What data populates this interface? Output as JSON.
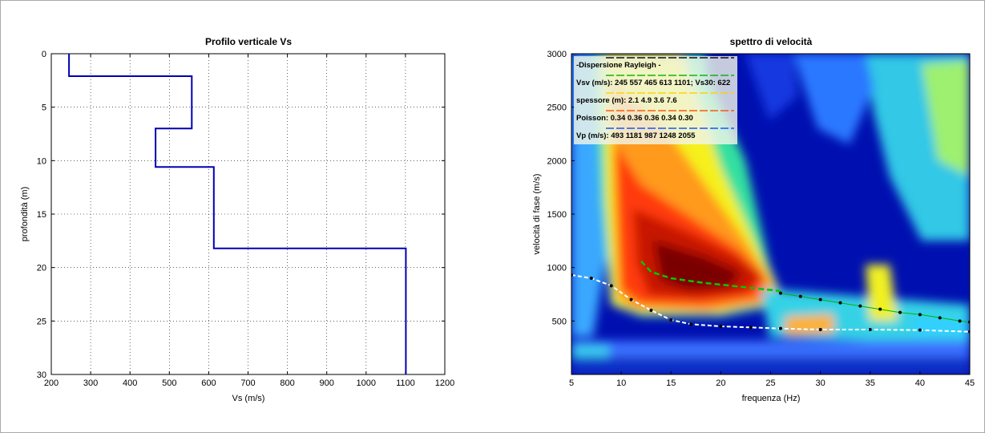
{
  "chart_data": [
    {
      "type": "line",
      "title": "Profilo verticale Vs",
      "xlabel": "Vs (m/s)",
      "ylabel": "profondità (m)",
      "xlim": [
        200,
        1200
      ],
      "ylim": [
        0,
        30
      ],
      "y_reversed": true,
      "grid": true,
      "x_ticks": [
        "200",
        "300",
        "400",
        "500",
        "600",
        "700",
        "800",
        "900",
        "1000",
        "1100",
        "1200"
      ],
      "y_ticks": [
        "0",
        "5",
        "10",
        "15",
        "20",
        "25",
        "30"
      ],
      "series": [
        {
          "color": "#0000b4",
          "x": [
            245,
            245,
            557,
            557,
            465,
            465,
            613,
            613,
            1101,
            1101
          ],
          "y": [
            0,
            2.1,
            2.1,
            7.0,
            7.0,
            10.6,
            10.6,
            18.2,
            18.2,
            30
          ]
        }
      ]
    },
    {
      "type": "heatmap",
      "title": "spettro di velocità",
      "xlabel": "frequenza (Hz)",
      "ylabel": "velocità di fase (m/s)",
      "xlim": [
        5,
        45
      ],
      "ylim": [
        0,
        3000
      ],
      "x_ticks": [
        "5",
        "10",
        "15",
        "20",
        "25",
        "30",
        "35",
        "40",
        "45"
      ],
      "y_ticks": [
        "500",
        "1000",
        "1500",
        "2000",
        "2500",
        "3000"
      ],
      "colormap": "jet",
      "legend_rows": [
        "-Dispersione Rayleigh -",
        "Vsv (m/s): 245   557   465   613   1101; Vs30: 622",
        "spessore (m): 2.1    4.9    3.6    7.6",
        "Poisson: 0.34  0.36  0.36  0.34  0.30",
        "Vp (m/s): 493  1181   987  1248  2055"
      ],
      "legend_colors": [
        "#000000",
        "#00b400",
        "#ffd200",
        "#ff5000",
        "#0050ff"
      ],
      "series": [
        {
          "color": "#00c800",
          "style": "dashed",
          "x": [
            12,
            13,
            15,
            18,
            21,
            24,
            26
          ],
          "y": [
            1060,
            960,
            900,
            860,
            830,
            800,
            780
          ]
        },
        {
          "color": "#ffffff",
          "style": "dashed-dots",
          "x": [
            5,
            7,
            9,
            11,
            13,
            15,
            17,
            20,
            23,
            26,
            30,
            35,
            40,
            45
          ],
          "y": [
            930,
            900,
            830,
            700,
            600,
            510,
            470,
            450,
            440,
            430,
            420,
            420,
            415,
            400
          ]
        },
        {
          "color": "#000000",
          "style": "dots",
          "x": [
            26,
            28,
            30,
            32,
            34,
            36,
            38,
            40,
            42,
            44,
            45
          ],
          "y": [
            760,
            730,
            700,
            670,
            640,
            610,
            580,
            560,
            530,
            500,
            490
          ]
        }
      ]
    }
  ]
}
